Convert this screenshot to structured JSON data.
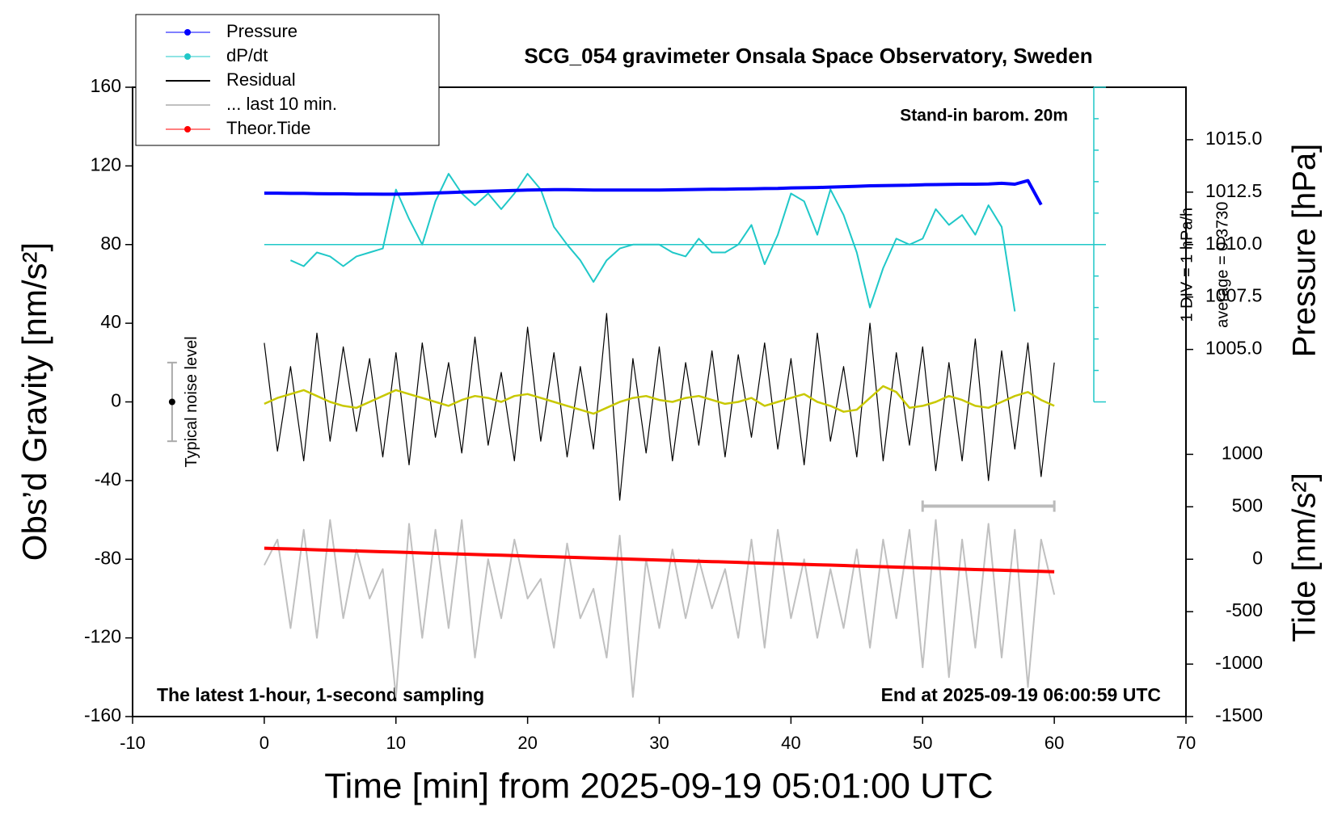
{
  "chart_data": {
    "type": "line",
    "title": "SCG_054 gravimeter Onsala Space Observatory, Sweden",
    "x_label": "Time [min] from 2025-09-19 05:01:00 UTC",
    "y_label": "Obs’d Gravity [nm/s²]",
    "y2_label": "Pressure [hPa]",
    "y3_label": "Tide [nm/s²]",
    "annotations": [
      "Stand-in barom. 20m",
      "The latest 1-hour, 1-second sampling",
      "End at 2025-09-19 06:00:59 UTC"
    ],
    "dpdt_scale": {
      "x": 63,
      "baseline": 80,
      "labels": [
        "1 DIV = 1 hPa/h",
        "average = 0.3730"
      ]
    },
    "noise_bar": {
      "x": -7,
      "low": -20,
      "center": 0,
      "high": 20,
      "label": "Typical noise level"
    },
    "last_10min_bar": {
      "x": [
        50,
        60
      ],
      "y": -53
    },
    "xlim": [
      -10,
      70
    ],
    "xticks": [
      -10,
      0,
      10,
      20,
      30,
      40,
      50,
      60,
      70
    ],
    "ylim": [
      -160,
      160
    ],
    "yticks": [
      -160,
      -120,
      -80,
      -40,
      0,
      40,
      80,
      120,
      160
    ],
    "y2lim": [
      1002.5,
      1017.5
    ],
    "y2ticks": [
      {
        "value": 1005,
        "label": "1005.0"
      },
      {
        "value": 1007.5,
        "label": "1007.5"
      },
      {
        "value": 1010,
        "label": "1010.0"
      },
      {
        "value": 1012.5,
        "label": "1012.5"
      },
      {
        "value": 1015,
        "label": "1015.0"
      }
    ],
    "y3lim": [
      -1500,
      1500
    ],
    "y3ticks": [
      -1500,
      -1000,
      -500,
      0,
      500,
      1000
    ],
    "x": [
      0,
      1,
      2,
      3,
      4,
      5,
      6,
      7,
      8,
      9,
      10,
      11,
      12,
      13,
      14,
      15,
      16,
      17,
      18,
      19,
      20,
      21,
      22,
      23,
      24,
      25,
      26,
      27,
      28,
      29,
      30,
      31,
      32,
      33,
      34,
      35,
      36,
      37,
      38,
      39,
      40,
      41,
      42,
      43,
      44,
      45,
      46,
      47,
      48,
      49,
      50,
      51,
      52,
      53,
      54,
      55,
      56,
      57,
      58,
      59,
      60
    ],
    "series": [
      {
        "name": "Pressure",
        "color": "#0000ff",
        "axis": "y2",
        "legend_marker": true,
        "width": 4,
        "values": [
          1012.45,
          1012.45,
          1012.44,
          1012.44,
          1012.43,
          1012.42,
          1012.42,
          1012.41,
          1012.41,
          1012.4,
          1012.4,
          1012.42,
          1012.44,
          1012.46,
          1012.48,
          1012.5,
          1012.52,
          1012.54,
          1012.56,
          1012.58,
          1012.6,
          1012.61,
          1012.62,
          1012.62,
          1012.61,
          1012.6,
          1012.6,
          1012.6,
          1012.6,
          1012.6,
          1012.6,
          1012.61,
          1012.62,
          1012.63,
          1012.64,
          1012.64,
          1012.65,
          1012.66,
          1012.67,
          1012.68,
          1012.7,
          1012.71,
          1012.72,
          1012.74,
          1012.76,
          1012.78,
          1012.8,
          1012.81,
          1012.82,
          1012.83,
          1012.85,
          1012.86,
          1012.87,
          1012.88,
          1012.88,
          1012.89,
          1012.92,
          1012.88,
          1013.05,
          1011.9,
          null
        ]
      },
      {
        "name": "dP/dt",
        "color": "#20c8c8",
        "axis": "y",
        "legend_marker": true,
        "width": 2,
        "values": [
          null,
          null,
          72,
          69,
          76,
          74,
          69,
          74,
          76,
          78,
          108,
          93,
          80,
          102,
          116,
          106,
          100,
          106,
          98,
          106,
          116,
          108,
          89,
          80,
          72,
          61,
          72,
          78,
          80,
          80,
          80,
          76,
          74,
          83,
          76,
          76,
          80,
          90,
          70,
          85,
          106,
          102,
          85,
          108,
          95,
          76,
          48,
          68,
          83,
          80,
          83,
          98,
          90,
          95,
          85,
          100,
          89,
          46,
          null,
          null,
          null
        ]
      },
      {
        "name": "Residual",
        "color": "#000000",
        "axis": "y",
        "legend_marker": false,
        "width": 1.2,
        "values": [
          30,
          -25,
          18,
          -30,
          35,
          -20,
          28,
          -15,
          22,
          -28,
          25,
          -32,
          30,
          -18,
          20,
          -26,
          33,
          -22,
          15,
          -30,
          38,
          -20,
          25,
          -28,
          18,
          -24,
          45,
          -50,
          22,
          -26,
          28,
          -30,
          20,
          -22,
          26,
          -28,
          24,
          -18,
          30,
          -24,
          22,
          -32,
          35,
          -20,
          18,
          -28,
          40,
          -30,
          25,
          -22,
          28,
          -35,
          20,
          -30,
          32,
          -40,
          26,
          -24,
          30,
          -38,
          20
        ]
      },
      {
        "name": "... last 10 min.",
        "color": "#c0c0c0",
        "axis": "y",
        "legend_marker": false,
        "width": 2,
        "values": [
          -83,
          -70,
          -115,
          -65,
          -120,
          -60,
          -110,
          -75,
          -100,
          -85,
          -150,
          -62,
          -120,
          -65,
          -115,
          -60,
          -130,
          -80,
          -110,
          -70,
          -100,
          -90,
          -125,
          -72,
          -110,
          -95,
          -130,
          -68,
          -150,
          -80,
          -115,
          -75,
          -110,
          -80,
          -105,
          -85,
          -120,
          -70,
          -125,
          -65,
          -110,
          -80,
          -120,
          -85,
          -115,
          -75,
          -125,
          -70,
          -110,
          -65,
          -135,
          -60,
          -140,
          -70,
          -125,
          -62,
          -130,
          -65,
          -145,
          -70,
          -98
        ]
      },
      {
        "name": "Theor.Tide",
        "color": "#ff0000",
        "axis": "y3",
        "legend_marker": true,
        "width": 4,
        "values": [
          105,
          101,
          98,
          94,
          90,
          86,
          83,
          79,
          75,
          71,
          68,
          64,
          60,
          56,
          53,
          49,
          45,
          41,
          38,
          34,
          30,
          26,
          23,
          19,
          15,
          11,
          8,
          4,
          0,
          -4,
          -8,
          -11,
          -15,
          -19,
          -23,
          -26,
          -30,
          -34,
          -38,
          -41,
          -45,
          -49,
          -53,
          -56,
          -60,
          -64,
          -68,
          -71,
          -75,
          -79,
          -83,
          -86,
          -90,
          -94,
          -98,
          -101,
          -105,
          -109,
          -113,
          -116,
          -120
        ]
      }
    ],
    "smoothed_residual": {
      "color": "#c8c800",
      "width": 2.5,
      "values": [
        -1,
        2,
        4,
        6,
        3,
        0,
        -2,
        -3,
        0,
        3,
        6,
        4,
        2,
        0,
        -2,
        1,
        3,
        2,
        0,
        3,
        4,
        2,
        0,
        -2,
        -4,
        -6,
        -3,
        0,
        2,
        3,
        1,
        0,
        2,
        3,
        1,
        -1,
        0,
        2,
        -2,
        0,
        2,
        4,
        0,
        -2,
        -5,
        -4,
        2,
        8,
        5,
        -3,
        -2,
        0,
        3,
        1,
        -2,
        -3,
        0,
        3,
        5,
        1,
        -2
      ]
    }
  }
}
